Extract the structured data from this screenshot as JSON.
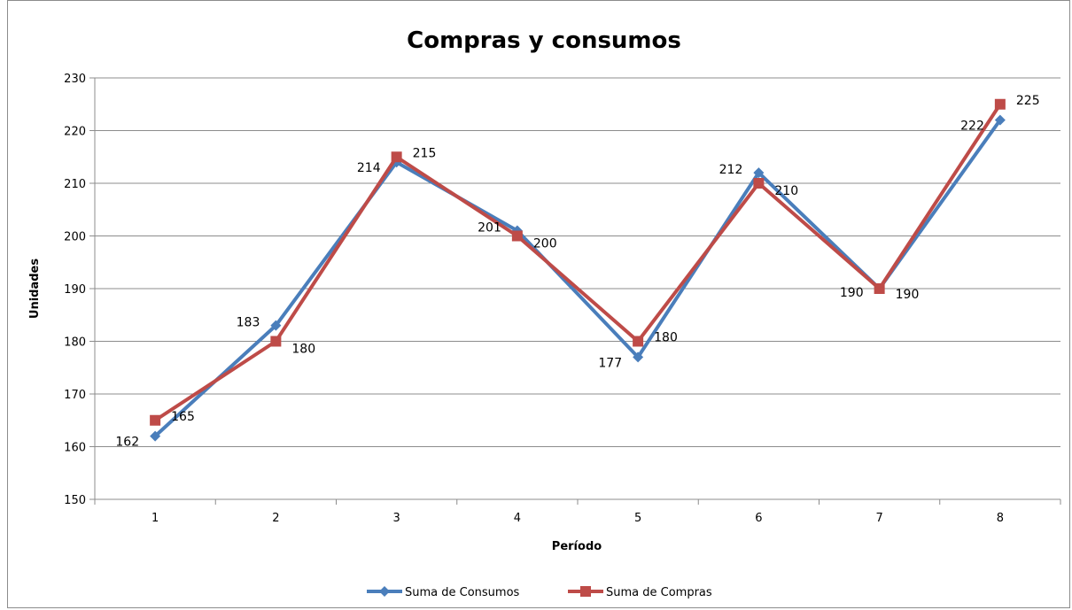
{
  "chart_data": {
    "type": "line",
    "title": "Compras y consumos",
    "xlabel": "Período",
    "ylabel": "Unidades",
    "categories": [
      "1",
      "2",
      "3",
      "4",
      "5",
      "6",
      "7",
      "8"
    ],
    "ylim": [
      150,
      230
    ],
    "ytick_step": 10,
    "grid": true,
    "legend_position": "bottom",
    "series": [
      {
        "name": "Suma de Consumos",
        "color": "#4a7ebb",
        "marker": "diamond",
        "values": [
          162,
          183,
          214,
          201,
          177,
          212,
          190,
          222
        ]
      },
      {
        "name": "Suma de Compras",
        "color": "#be4b48",
        "marker": "square",
        "values": [
          165,
          180,
          215,
          200,
          180,
          210,
          190,
          225
        ]
      }
    ]
  }
}
